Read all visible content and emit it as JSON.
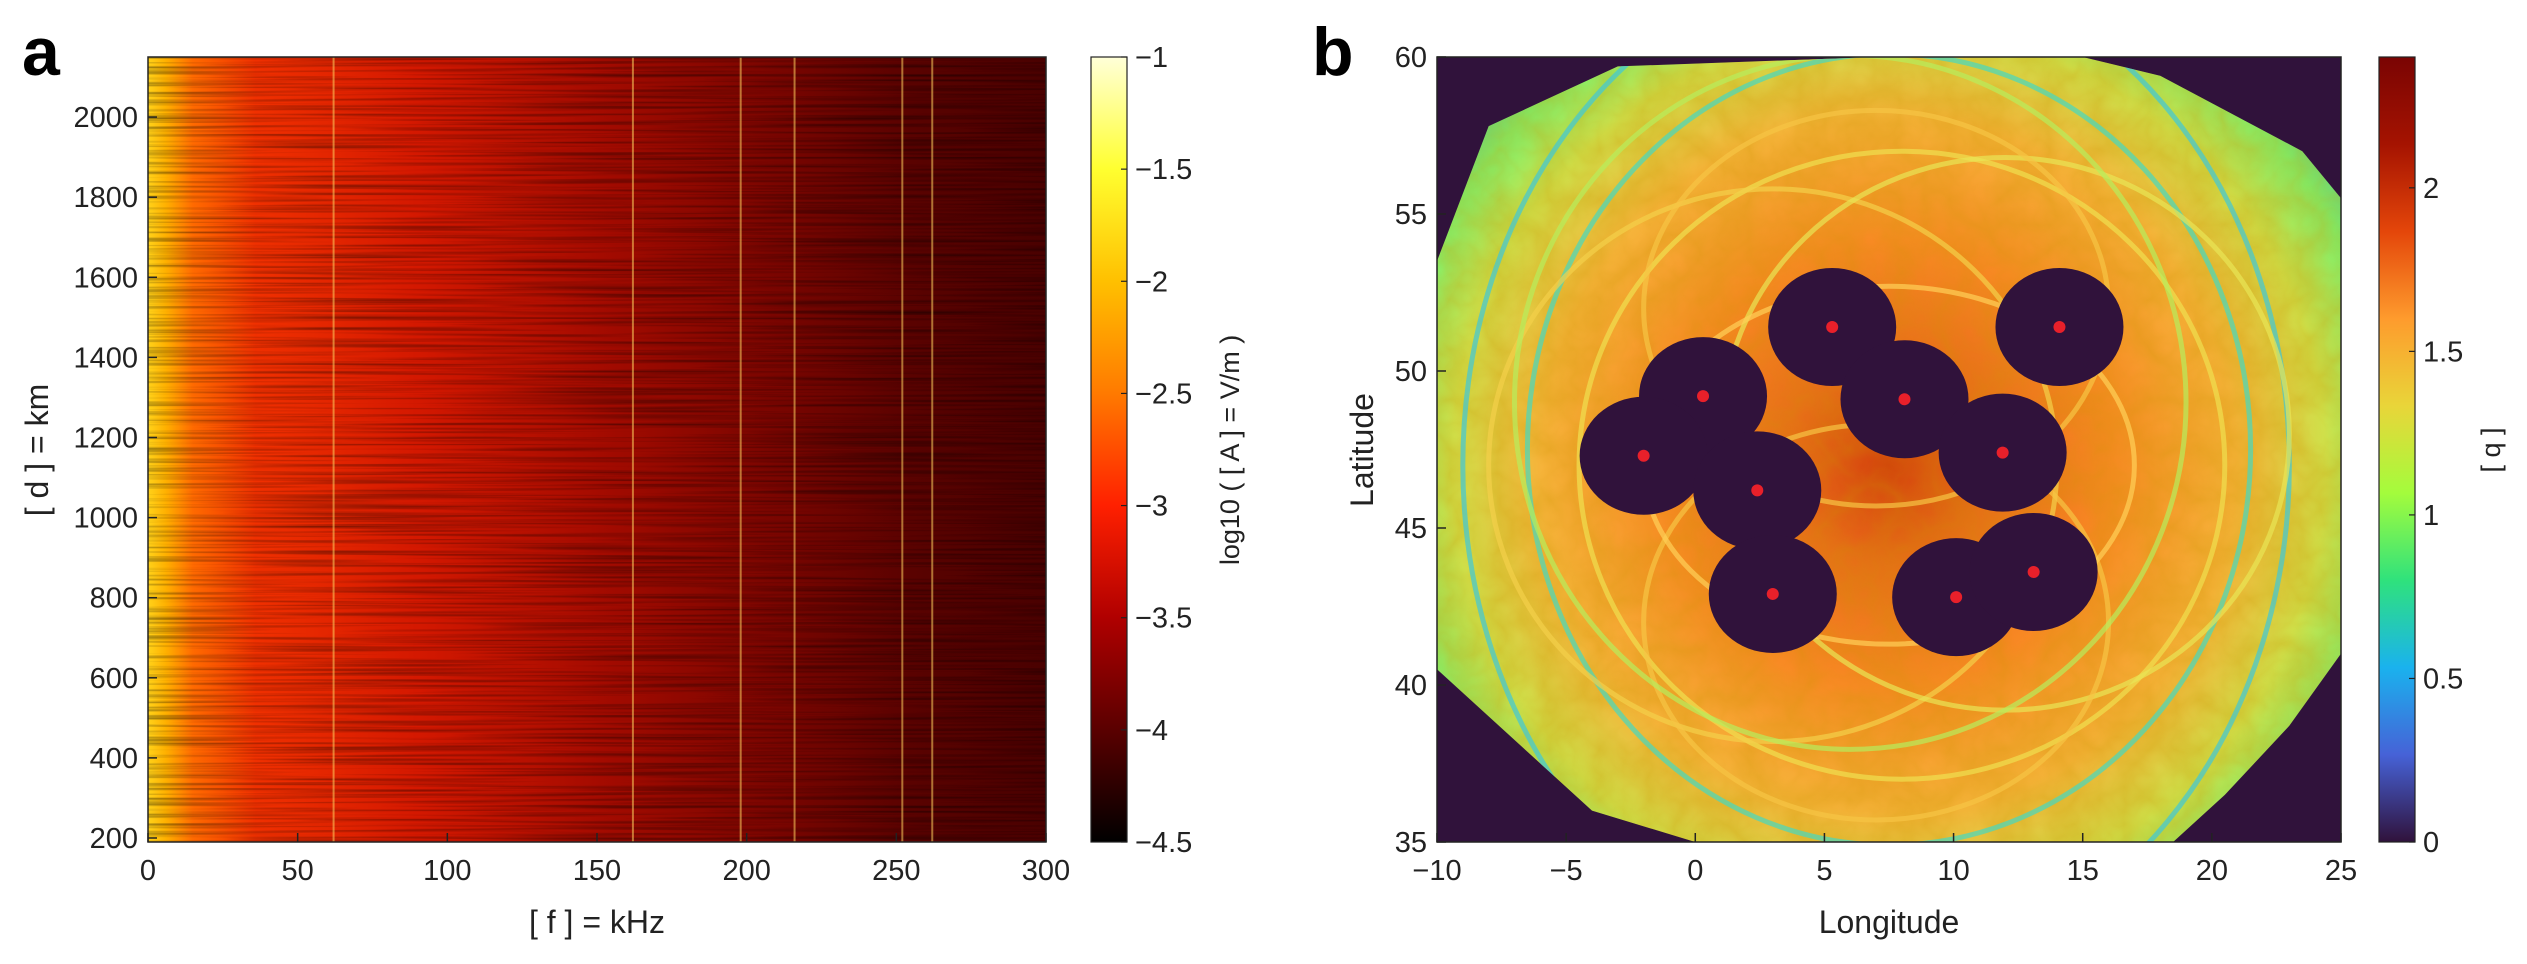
{
  "panel_labels": [
    "a",
    "b"
  ],
  "chart_data": [
    {
      "type": "heatmap",
      "panel": "a",
      "xlabel": "[ f ] = kHz",
      "ylabel": "[ d ] = km",
      "xlim": [
        0,
        300
      ],
      "ylim": [
        190,
        2150
      ],
      "x_ticks": [
        0,
        50,
        100,
        150,
        200,
        250,
        300
      ],
      "y_ticks": [
        200,
        400,
        600,
        800,
        1000,
        1200,
        1400,
        1600,
        1800,
        2000
      ],
      "colorbar": {
        "label": "log10 ( [ A ] = V/m )",
        "range": [
          -4.5,
          -1
        ],
        "ticks": [
          -1,
          -1.5,
          -2,
          -2.5,
          -3,
          -3.5,
          -4,
          -4.5
        ],
        "colormap": "hot",
        "colors": [
          "#000000",
          "#5a0000",
          "#b00000",
          "#ff2000",
          "#ff7a00",
          "#ffc000",
          "#ffff30",
          "#ffffd8"
        ]
      },
      "features": {
        "bright_band_kHz": [
          0,
          18
        ],
        "transmitter_lines_kHz": [
          62,
          162,
          198,
          216,
          252,
          262
        ]
      }
    },
    {
      "type": "heatmap",
      "panel": "b",
      "xlabel": "Longitude",
      "ylabel": "Latitude",
      "xlim": [
        -10,
        25
      ],
      "ylim": [
        35,
        60
      ],
      "x_ticks": [
        -10,
        -5,
        0,
        5,
        10,
        15,
        20,
        25
      ],
      "y_ticks": [
        35,
        40,
        45,
        50,
        55,
        60
      ],
      "colorbar": {
        "label": "[ q ]",
        "range": [
          0,
          2.4
        ],
        "ticks": [
          0,
          0.5,
          1,
          1.5,
          2
        ],
        "colormap": "turbo",
        "colors": [
          "#30123b",
          "#4662d7",
          "#1ab2ee",
          "#2fe27c",
          "#a4fc3c",
          "#e9d539",
          "#fe9b2d",
          "#e4460a",
          "#a51301",
          "#7a0403"
        ]
      },
      "background_value": 0,
      "receivers": [
        {
          "lon": 5.3,
          "lat": 51.4
        },
        {
          "lon": 14.1,
          "lat": 51.4
        },
        {
          "lon": 0.3,
          "lat": 49.2
        },
        {
          "lon": 8.1,
          "lat": 49.1
        },
        {
          "lon": -2.0,
          "lat": 47.3
        },
        {
          "lon": 11.9,
          "lat": 47.4
        },
        {
          "lon": 2.4,
          "lat": 46.2
        },
        {
          "lon": 3.0,
          "lat": 42.9
        },
        {
          "lon": 10.1,
          "lat": 42.8
        },
        {
          "lon": 13.1,
          "lat": 43.6
        }
      ]
    }
  ]
}
